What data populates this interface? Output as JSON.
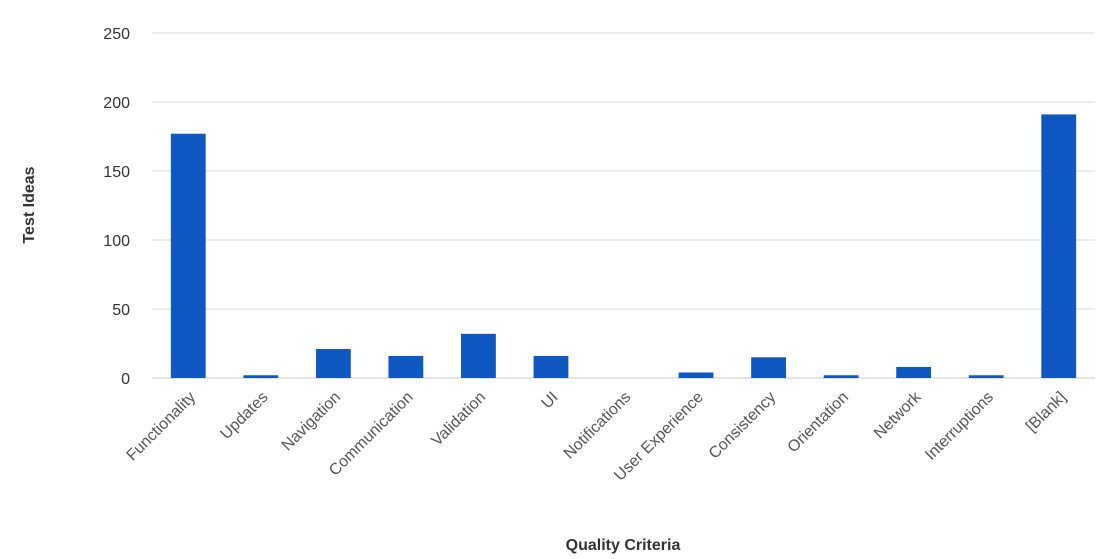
{
  "colors": {
    "bar": "#0f57c1",
    "grid": "#d9d9d9",
    "text": "#333333"
  },
  "chart_data": {
    "type": "bar",
    "title": "",
    "xlabel": "Quality Criteria",
    "ylabel": "Test Ideas",
    "categories": [
      "Functionality",
      "Updates",
      "Navigation",
      "Communication",
      "Validation",
      "UI",
      "Notifications",
      "User Experience",
      "Consistency",
      "Orientation",
      "Network",
      "Interruptions",
      "[Blank]"
    ],
    "values": [
      177,
      2,
      21,
      16,
      32,
      16,
      0,
      4,
      15,
      2,
      8,
      2,
      191
    ],
    "ylim": [
      0,
      250
    ],
    "yticks": [
      0,
      50,
      100,
      150,
      200,
      250
    ],
    "grid": true,
    "legend": "none"
  }
}
